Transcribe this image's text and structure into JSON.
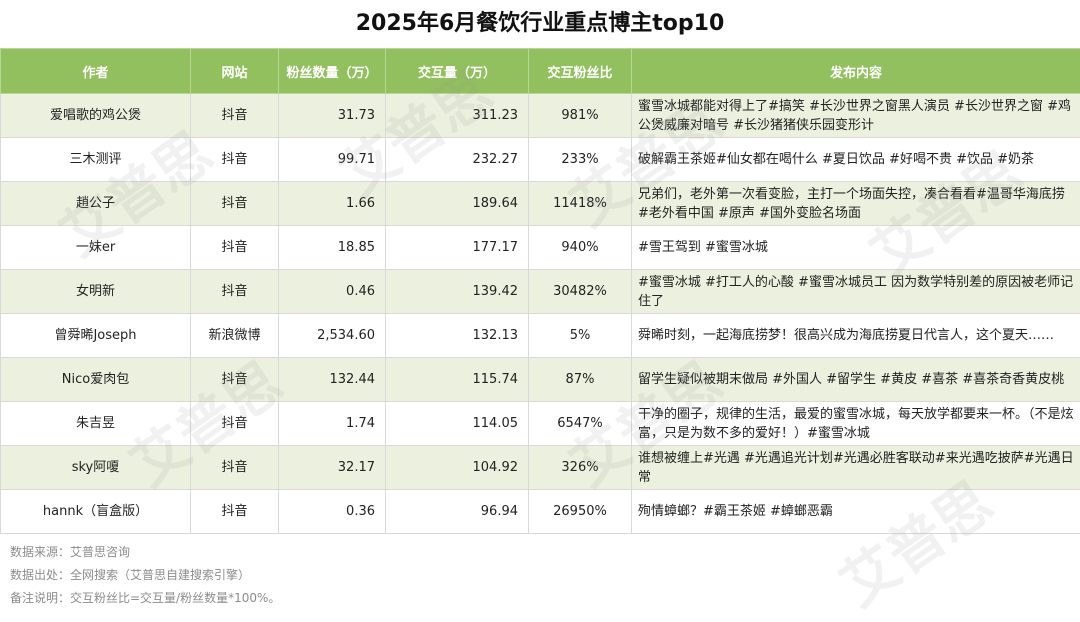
{
  "title": "2025年6月餐饮行业重点博主top10",
  "headers": [
    "作者",
    "网站",
    "粉丝数量（万）",
    "交互量（万）",
    "交互粉丝比",
    "发布内容"
  ],
  "rows": [
    {
      "author": "爱唱歌的鸡公煲",
      "site": "抖音",
      "fans": "31.73",
      "interactions": "311.23",
      "ratio": "981%",
      "content": "蜜雪冰城都能对得上了#搞笑 #长沙世界之窗黑人演员 #长沙世界之窗 #鸡公煲威廉对暗号 #长沙猪猪侠乐园变形计"
    },
    {
      "author": "三木测评",
      "site": "抖音",
      "fans": "99.71",
      "interactions": "232.27",
      "ratio": "233%",
      "content": "破解霸王茶姬#仙女都在喝什么 #夏日饮品 #好喝不贵 #饮品 #奶茶"
    },
    {
      "author": "趙公子",
      "site": "抖音",
      "fans": "1.66",
      "interactions": "189.64",
      "ratio": "11418%",
      "content": "兄弟们，老外第一次看变脸，主打一个场面失控，凑合看看#温哥华海底捞 #老外看中国 #原声 #国外变脸名场面"
    },
    {
      "author": "一妹er",
      "site": "抖音",
      "fans": "18.85",
      "interactions": "177.17",
      "ratio": "940%",
      "content": "#雪王驾到 #蜜雪冰城"
    },
    {
      "author": "女明新",
      "site": "抖音",
      "fans": "0.46",
      "interactions": "139.42",
      "ratio": "30482%",
      "content": "#蜜雪冰城 #打工人的心酸 #蜜雪冰城员工 因为数学特别差的原因被老师记住了"
    },
    {
      "author": "曾舜晞Joseph",
      "site": "新浪微博",
      "fans": "2,534.60",
      "interactions": "132.13",
      "ratio": "5%",
      "content": "舜晞时刻，一起海底捞梦！很高兴成为海底捞夏日代言人，这个夏天……"
    },
    {
      "author": "Nico爱肉包",
      "site": "抖音",
      "fans": "132.44",
      "interactions": "115.74",
      "ratio": "87%",
      "content": "留学生疑似被期末做局 #外国人 #留学生 #黄皮 #喜茶 #喜茶奇香黄皮桃"
    },
    {
      "author": "朱吉昱",
      "site": "抖音",
      "fans": "1.74",
      "interactions": "114.05",
      "ratio": "6547%",
      "content": "干净的圈子，规律的生活，最爱的蜜雪冰城，每天放学都要来一杯。（不是炫富，只是为数不多的爱好！）#蜜雪冰城"
    },
    {
      "author": "sky阿嗄",
      "site": "抖音",
      "fans": "32.17",
      "interactions": "104.92",
      "ratio": "326%",
      "content": "谁想被缠上#光遇 #光遇追光计划#光遇必胜客联动#来光遇吃披萨#光遇日常"
    },
    {
      "author": "hannk（盲盒版）",
      "site": "抖音",
      "fans": "0.36",
      "interactions": "96.94",
      "ratio": "26950%",
      "content": "殉情蟑螂？#霸王茶姬 #蟑螂恶霸"
    }
  ],
  "notes": [
    "数据来源：艾普思咨询",
    "数据出处：全网搜索（艾普思自建搜索引擎）",
    "备注说明：交互粉丝比=交互量/粉丝数量*100%。"
  ],
  "watermark": "艾普思"
}
